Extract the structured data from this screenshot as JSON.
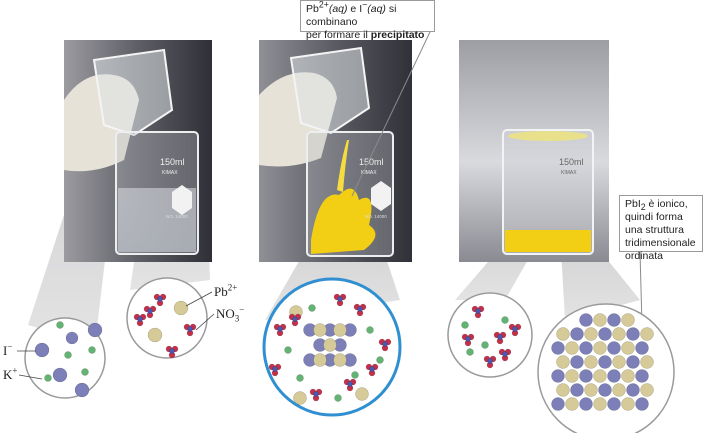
{
  "callouts": {
    "combine": {
      "part1": "Pb",
      "sup1": "2+",
      "aq1": "(aq)",
      "mid": " e I",
      "sup2": "−",
      "aq2": "(aq)",
      "end": " si combinano",
      "line2": "per formare il ",
      "bold": "precipitato"
    },
    "ionic": {
      "pb": "PbI",
      "sub": "2",
      "rest": " è ionico, quindi forma una struttura tridimensionale ordinata"
    }
  },
  "beaker": {
    "volume": "150ml",
    "brand": "KIMAX",
    "serial": "NO. 14000"
  },
  "ion_labels": {
    "iodide": {
      "base": "I",
      "charge": "−"
    },
    "potassium": {
      "base": "K",
      "charge": "+"
    },
    "lead": {
      "base": "Pb",
      "charge": "2+"
    },
    "nitrate": {
      "base": "NO",
      "sub": "3",
      "charge": "−"
    }
  },
  "colors": {
    "iodide": "#7d80b8",
    "potassium": "#63b372",
    "lead": "#d6ca98",
    "nitrate_n": "#4a58b0",
    "nitrate_o": "#c4304a",
    "precipitate": "#f2cf14",
    "highlight_circle_border": "#2f8fd0"
  }
}
